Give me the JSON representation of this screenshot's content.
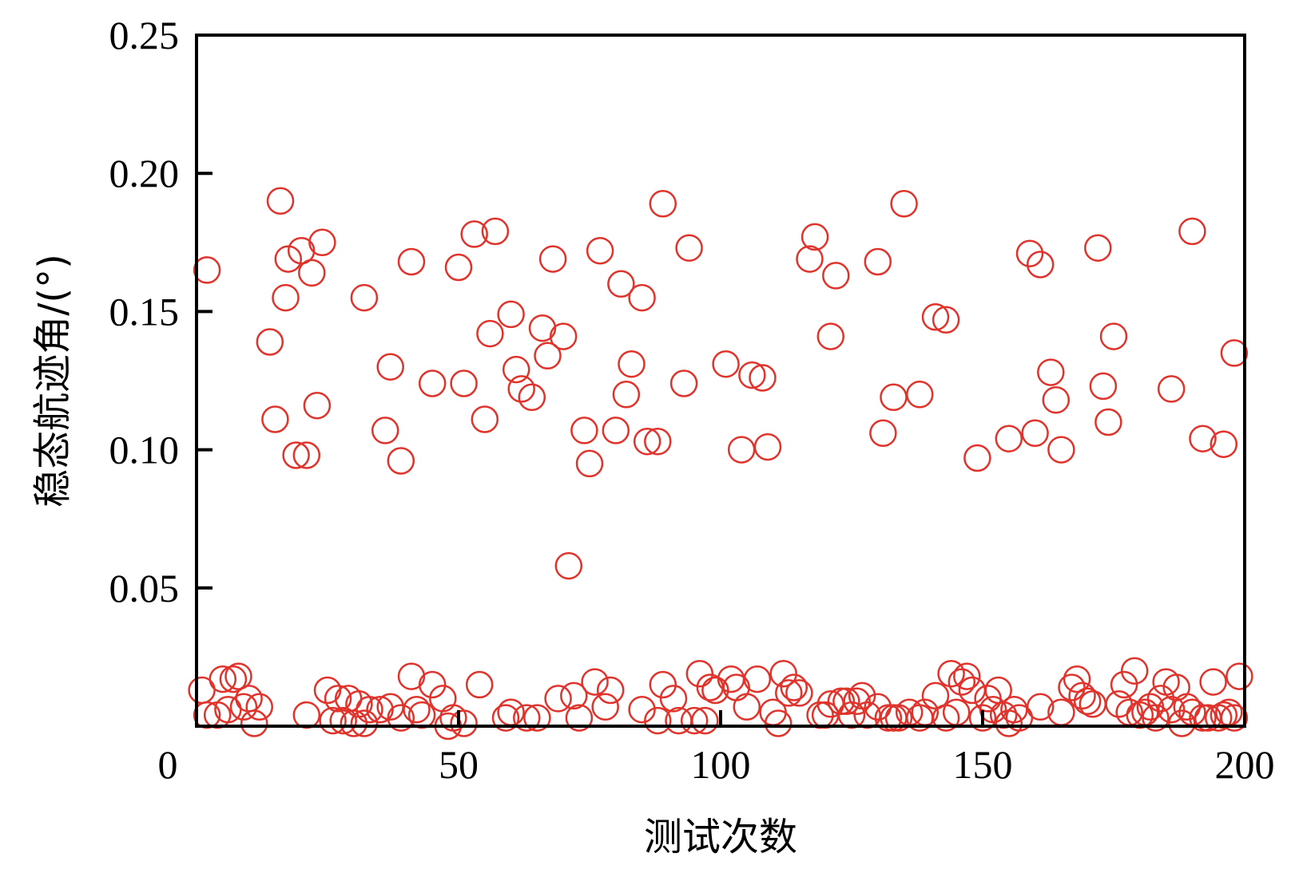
{
  "chart_data": {
    "type": "scatter",
    "title": "",
    "xlabel": "测试次数",
    "ylabel": "稳态航迹角/(°)",
    "xlim": [
      0,
      200
    ],
    "ylim": [
      0,
      0.25
    ],
    "grid": false,
    "marker": "hollow-circle",
    "marker_color": "#e0332b",
    "x_ticks": [
      {
        "value": 0,
        "label": "0"
      },
      {
        "value": 50,
        "label": "50"
      },
      {
        "value": 100,
        "label": "100"
      },
      {
        "value": 150,
        "label": "150"
      },
      {
        "value": 200,
        "label": "200"
      }
    ],
    "y_ticks": [
      {
        "value": 0.05,
        "label": "0.05"
      },
      {
        "value": 0.1,
        "label": "0.10"
      },
      {
        "value": 0.15,
        "label": "0.15"
      },
      {
        "value": 0.2,
        "label": "0.20"
      },
      {
        "value": 0.25,
        "label": "0.25"
      }
    ],
    "points": [
      [
        2,
        0.165
      ],
      [
        14,
        0.139
      ],
      [
        15,
        0.111
      ],
      [
        16,
        0.19
      ],
      [
        17,
        0.155
      ],
      [
        17.5,
        0.169
      ],
      [
        19,
        0.098
      ],
      [
        20,
        0.172
      ],
      [
        21,
        0.098
      ],
      [
        22,
        0.164
      ],
      [
        23,
        0.116
      ],
      [
        24,
        0.175
      ],
      [
        32,
        0.155
      ],
      [
        36,
        0.107
      ],
      [
        37,
        0.13
      ],
      [
        39,
        0.096
      ],
      [
        41,
        0.168
      ],
      [
        45,
        0.124
      ],
      [
        50,
        0.166
      ],
      [
        51,
        0.124
      ],
      [
        53,
        0.178
      ],
      [
        55,
        0.111
      ],
      [
        56,
        0.142
      ],
      [
        57,
        0.179
      ],
      [
        60,
        0.149
      ],
      [
        61,
        0.129
      ],
      [
        62,
        0.122
      ],
      [
        64,
        0.119
      ],
      [
        66,
        0.144
      ],
      [
        67,
        0.134
      ],
      [
        68,
        0.169
      ],
      [
        70,
        0.141
      ],
      [
        71,
        0.058
      ],
      [
        74,
        0.107
      ],
      [
        75,
        0.095
      ],
      [
        77,
        0.172
      ],
      [
        80,
        0.107
      ],
      [
        81,
        0.16
      ],
      [
        82,
        0.12
      ],
      [
        83,
        0.131
      ],
      [
        85,
        0.155
      ],
      [
        86,
        0.103
      ],
      [
        88,
        0.103
      ],
      [
        89,
        0.189
      ],
      [
        93,
        0.124
      ],
      [
        94,
        0.173
      ],
      [
        101,
        0.131
      ],
      [
        104,
        0.1
      ],
      [
        106,
        0.127
      ],
      [
        108,
        0.126
      ],
      [
        109,
        0.101
      ],
      [
        117,
        0.169
      ],
      [
        118,
        0.177
      ],
      [
        121,
        0.141
      ],
      [
        122,
        0.163
      ],
      [
        130,
        0.168
      ],
      [
        131,
        0.106
      ],
      [
        133,
        0.119
      ],
      [
        135,
        0.189
      ],
      [
        138,
        0.12
      ],
      [
        141,
        0.148
      ],
      [
        143,
        0.147
      ],
      [
        149,
        0.097
      ],
      [
        155,
        0.104
      ],
      [
        159,
        0.171
      ],
      [
        160,
        0.106
      ],
      [
        161,
        0.167
      ],
      [
        163,
        0.128
      ],
      [
        164,
        0.118
      ],
      [
        165,
        0.1
      ],
      [
        172,
        0.173
      ],
      [
        173,
        0.123
      ],
      [
        174,
        0.11
      ],
      [
        175,
        0.141
      ],
      [
        186,
        0.122
      ],
      [
        190,
        0.179
      ],
      [
        192,
        0.104
      ],
      [
        196,
        0.102
      ],
      [
        198,
        0.135
      ],
      [
        1,
        0.013
      ],
      [
        2,
        0.004
      ],
      [
        4,
        0.004
      ],
      [
        5,
        0.017
      ],
      [
        6,
        0.006
      ],
      [
        7,
        0.017
      ],
      [
        8,
        0.018
      ],
      [
        9,
        0.007
      ],
      [
        10,
        0.01
      ],
      [
        11,
        0.001
      ],
      [
        12,
        0.007
      ],
      [
        21,
        0.004
      ],
      [
        25,
        0.013
      ],
      [
        26,
        0.002
      ],
      [
        27,
        0.01
      ],
      [
        28,
        0.002
      ],
      [
        29,
        0.01
      ],
      [
        30,
        0.001
      ],
      [
        31,
        0.008
      ],
      [
        32,
        0.001
      ],
      [
        33,
        0.006
      ],
      [
        35,
        0.006
      ],
      [
        37,
        0.007
      ],
      [
        39,
        0.003
      ],
      [
        41,
        0.018
      ],
      [
        42,
        0.006
      ],
      [
        43,
        0.004
      ],
      [
        45,
        0.015
      ],
      [
        47,
        0.01
      ],
      [
        48,
        0.0
      ],
      [
        49,
        0.003
      ],
      [
        51,
        0.001
      ],
      [
        54,
        0.015
      ],
      [
        59,
        0.003
      ],
      [
        60,
        0.005
      ],
      [
        63,
        0.003
      ],
      [
        65,
        0.003
      ],
      [
        69,
        0.01
      ],
      [
        72,
        0.011
      ],
      [
        73,
        0.003
      ],
      [
        76,
        0.016
      ],
      [
        78,
        0.007
      ],
      [
        79,
        0.013
      ],
      [
        85,
        0.006
      ],
      [
        88,
        0.002
      ],
      [
        89,
        0.015
      ],
      [
        91,
        0.01
      ],
      [
        92,
        0.002
      ],
      [
        95,
        0.002
      ],
      [
        96,
        0.019
      ],
      [
        97,
        0.002
      ],
      [
        98,
        0.014
      ],
      [
        99,
        0.013
      ],
      [
        102,
        0.017
      ],
      [
        103,
        0.014
      ],
      [
        105,
        0.007
      ],
      [
        107,
        0.017
      ],
      [
        110,
        0.005
      ],
      [
        111,
        0.001
      ],
      [
        112,
        0.019
      ],
      [
        113,
        0.012
      ],
      [
        114,
        0.014
      ],
      [
        115,
        0.012
      ],
      [
        119,
        0.004
      ],
      [
        120,
        0.004
      ],
      [
        121,
        0.008
      ],
      [
        123,
        0.009
      ],
      [
        124,
        0.009
      ],
      [
        125,
        0.004
      ],
      [
        126,
        0.009
      ],
      [
        127,
        0.011
      ],
      [
        128,
        0.004
      ],
      [
        130,
        0.007
      ],
      [
        132,
        0.003
      ],
      [
        133,
        0.003
      ],
      [
        134,
        0.003
      ],
      [
        136,
        0.005
      ],
      [
        138,
        0.003
      ],
      [
        139,
        0.005
      ],
      [
        141,
        0.011
      ],
      [
        143,
        0.003
      ],
      [
        144,
        0.019
      ],
      [
        145,
        0.005
      ],
      [
        146,
        0.016
      ],
      [
        147,
        0.018
      ],
      [
        148,
        0.013
      ],
      [
        150,
        0.003
      ],
      [
        151,
        0.01
      ],
      [
        152,
        0.006
      ],
      [
        153,
        0.013
      ],
      [
        154,
        0.004
      ],
      [
        155,
        0.001
      ],
      [
        156,
        0.006
      ],
      [
        157,
        0.003
      ],
      [
        161,
        0.007
      ],
      [
        165,
        0.005
      ],
      [
        167,
        0.014
      ],
      [
        168,
        0.017
      ],
      [
        169,
        0.011
      ],
      [
        170,
        0.009
      ],
      [
        171,
        0.008
      ],
      [
        176,
        0.008
      ],
      [
        177,
        0.015
      ],
      [
        178,
        0.005
      ],
      [
        179,
        0.02
      ],
      [
        180,
        0.004
      ],
      [
        181,
        0.005
      ],
      [
        182,
        0.007
      ],
      [
        183,
        0.003
      ],
      [
        184,
        0.01
      ],
      [
        185,
        0.016
      ],
      [
        186,
        0.006
      ],
      [
        187,
        0.014
      ],
      [
        188,
        0.001
      ],
      [
        189,
        0.007
      ],
      [
        190,
        0.005
      ],
      [
        192,
        0.003
      ],
      [
        193,
        0.003
      ],
      [
        194,
        0.016
      ],
      [
        195,
        0.003
      ],
      [
        196,
        0.004
      ],
      [
        197,
        0.005
      ],
      [
        198,
        0.003
      ],
      [
        199,
        0.018
      ]
    ]
  }
}
